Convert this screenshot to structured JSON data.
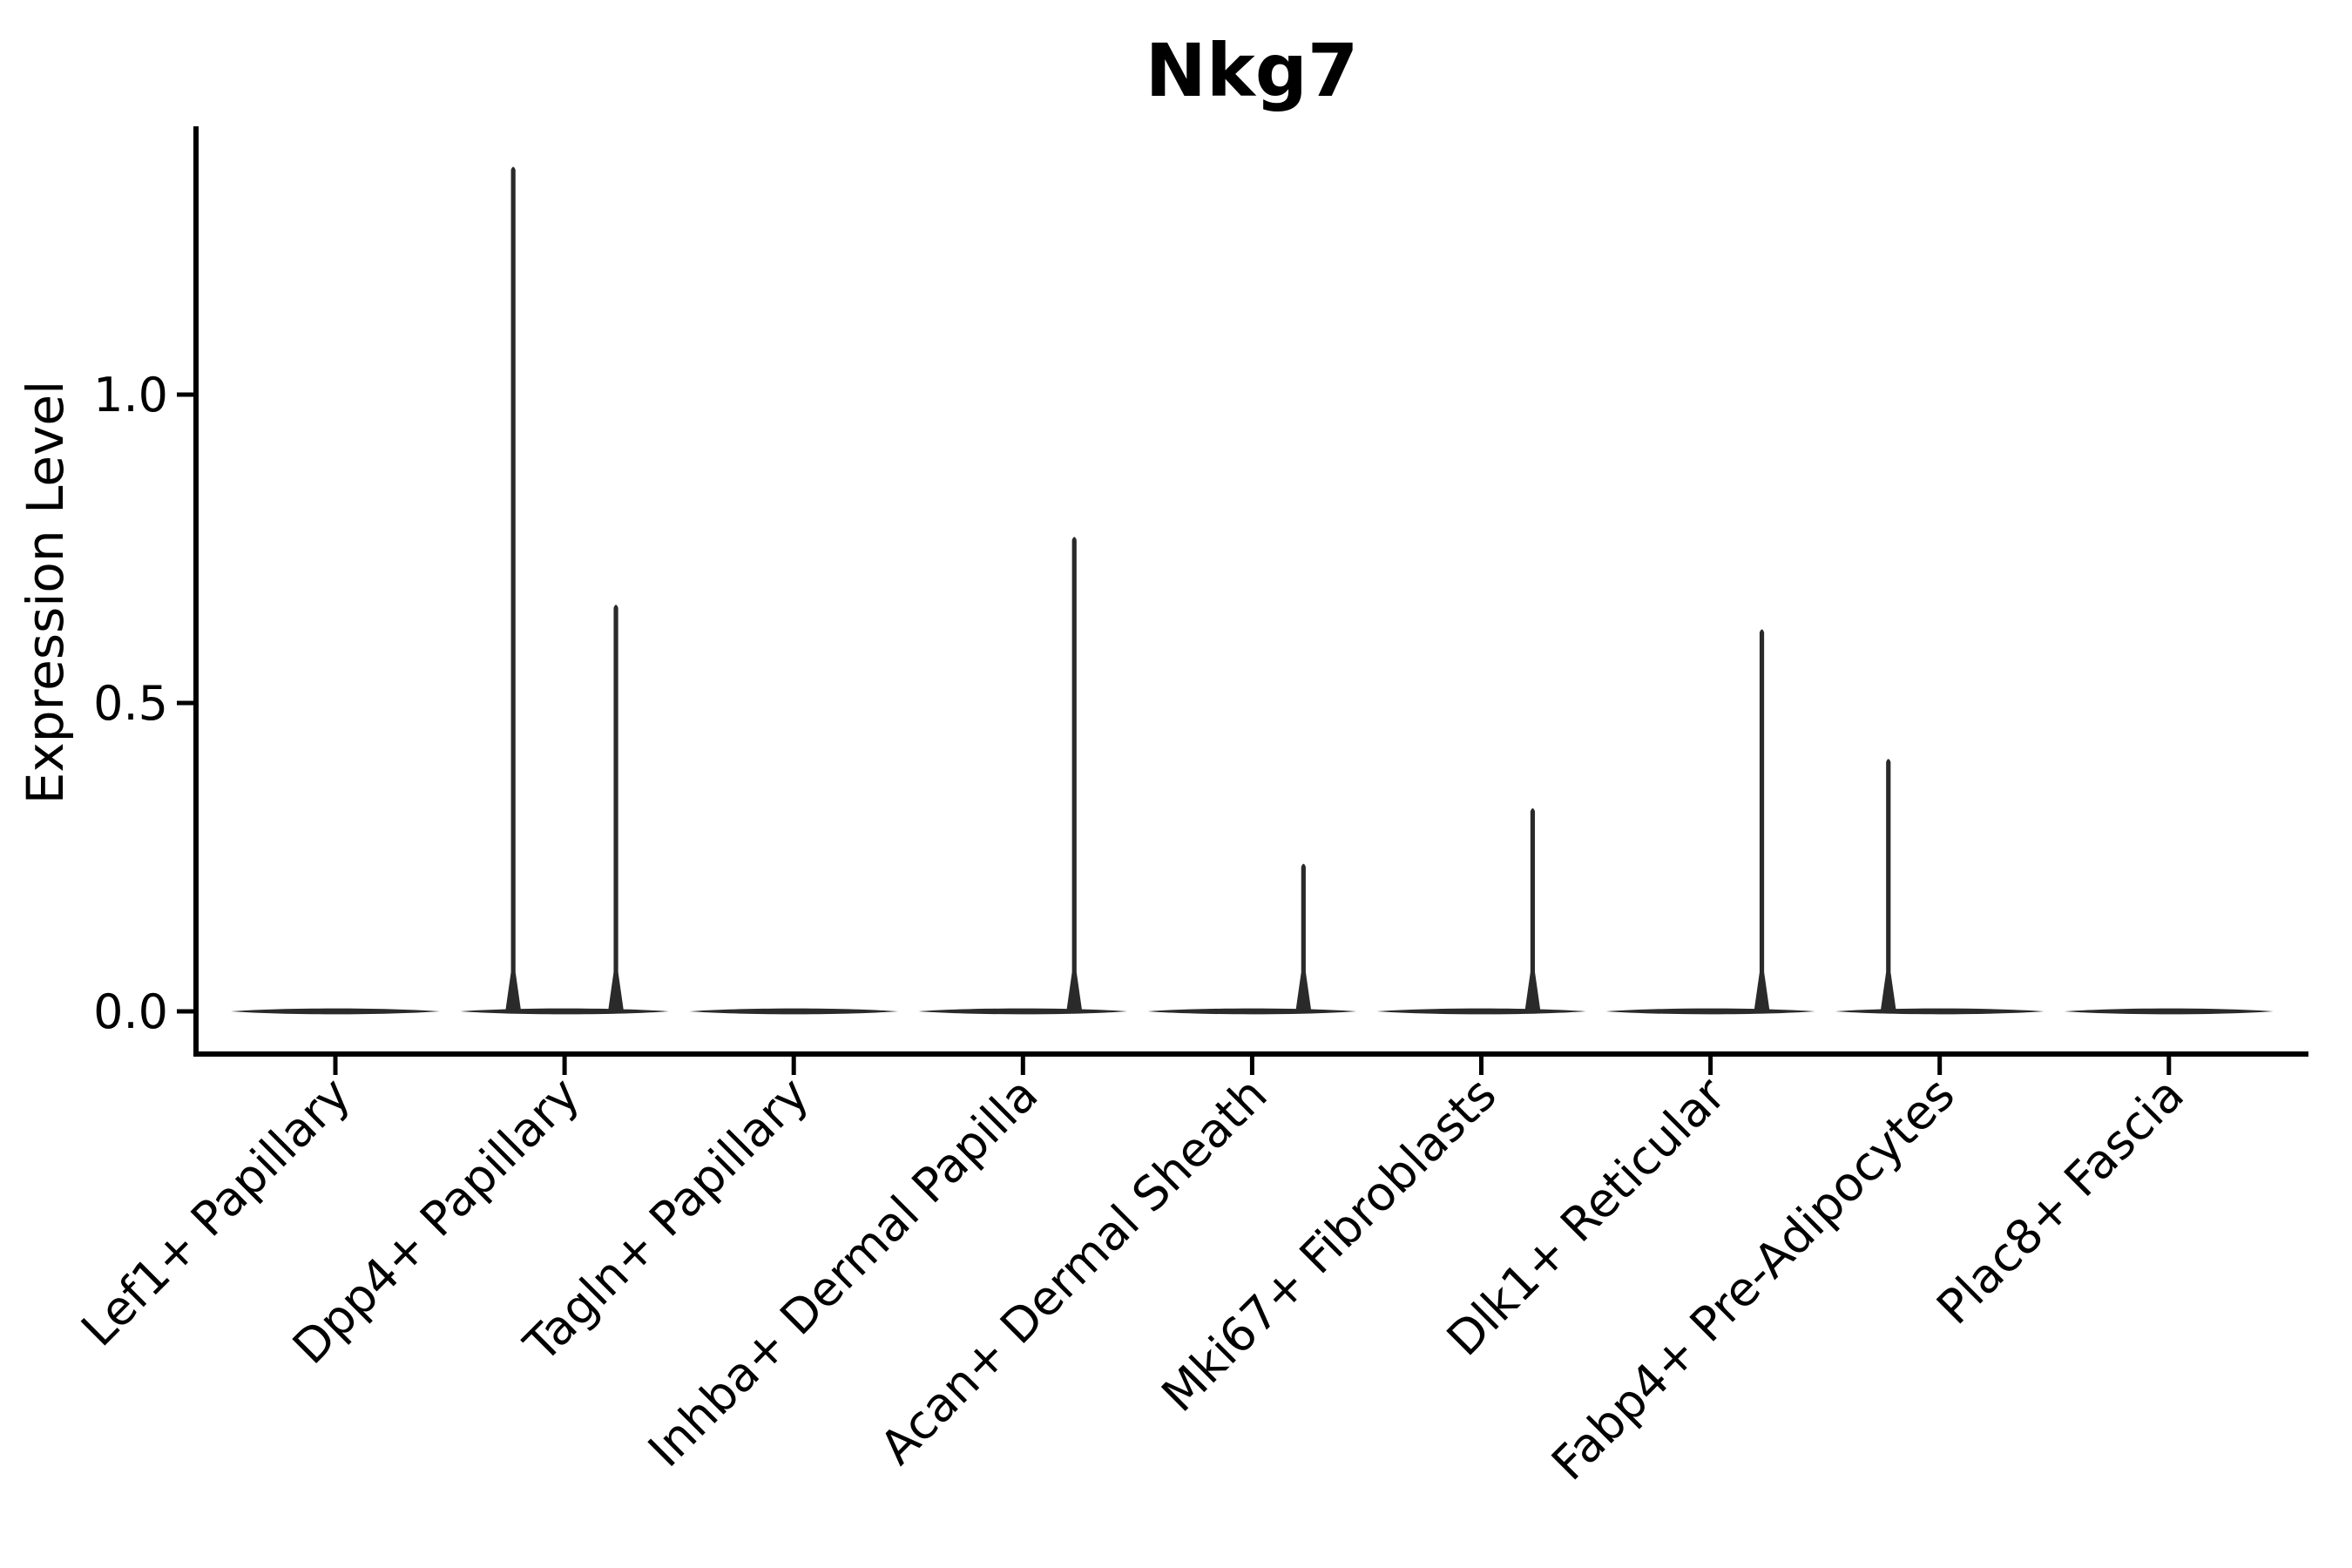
{
  "figure": {
    "background_color": "#ffffff"
  },
  "chart_data": {
    "type": "violin",
    "title": "Nkg7",
    "xlabel": "",
    "ylabel": "Expression Level",
    "grid": false,
    "legend_position": "none",
    "ylim": [
      -0.07,
      1.43
    ],
    "axis_color": "#000000",
    "violin_color": "#2a2a2a",
    "yticks": [
      {
        "value": 0.0,
        "label": "0.0"
      },
      {
        "value": 0.5,
        "label": "0.5"
      },
      {
        "value": 1.0,
        "label": "1.0"
      }
    ],
    "categories": [
      "Lef1+ Papillary",
      "Dpp4+ Papillary",
      "Tagln+ Papillary",
      "Inhba+ Dermal Papilla",
      "Acan+ Dermal Sheath",
      "Mki67+ Fibroblasts",
      "Dlk1+ Reticular",
      "Fabp4+ Pre-Adipocytes",
      "Plac8+ Fascia"
    ],
    "violins": [
      {
        "category": "Lef1+ Papillary",
        "baseline_value": 0.0,
        "spikes": []
      },
      {
        "category": "Dpp4+ Papillary",
        "baseline_value": 0.0,
        "spikes": [
          {
            "offset": -0.224,
            "max": 1.37
          },
          {
            "offset": 0.224,
            "max": 0.66
          }
        ]
      },
      {
        "category": "Tagln+ Papillary",
        "baseline_value": 0.0,
        "spikes": []
      },
      {
        "category": "Inhba+ Dermal Papilla",
        "baseline_value": 0.0,
        "spikes": [
          {
            "offset": 0.224,
            "max": 0.77
          }
        ]
      },
      {
        "category": "Acan+ Dermal Sheath",
        "baseline_value": 0.0,
        "spikes": [
          {
            "offset": 0.224,
            "max": 0.24
          }
        ]
      },
      {
        "category": "Mki67+ Fibroblasts",
        "baseline_value": 0.0,
        "spikes": [
          {
            "offset": 0.224,
            "max": 0.33
          }
        ]
      },
      {
        "category": "Dlk1+ Reticular",
        "baseline_value": 0.0,
        "spikes": [
          {
            "offset": 0.224,
            "max": 0.62
          }
        ]
      },
      {
        "category": "Fabp4+ Pre-Adipocytes",
        "baseline_value": 0.0,
        "spikes": [
          {
            "offset": -0.224,
            "max": 0.41
          }
        ]
      },
      {
        "category": "Plac8+ Fascia",
        "baseline_value": 0.0,
        "spikes": []
      }
    ]
  }
}
